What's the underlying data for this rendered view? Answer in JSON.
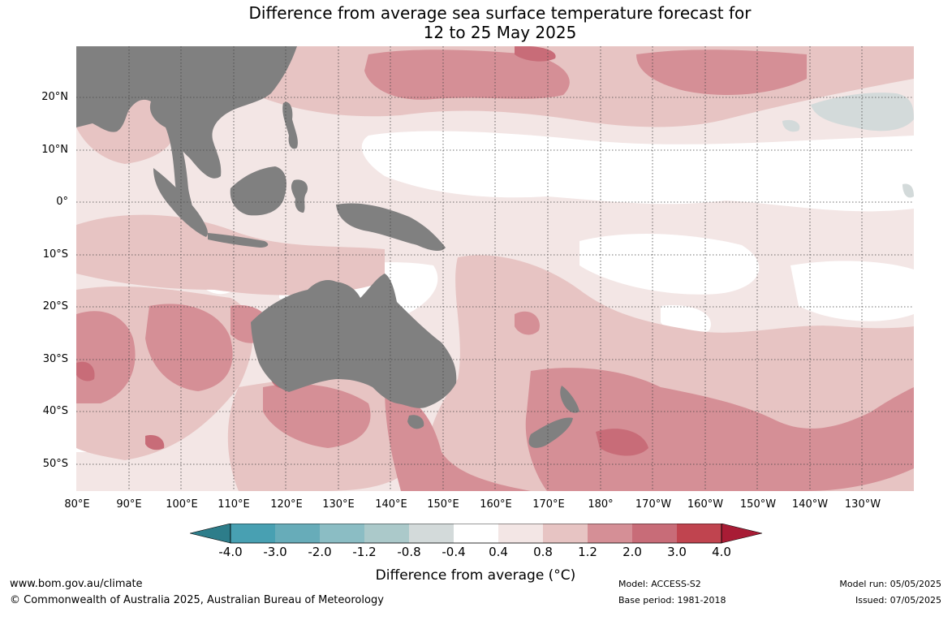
{
  "title": {
    "line1": "Difference from average sea surface temperature forecast for",
    "line2": "12 to 25 May 2025"
  },
  "map": {
    "lat_labels": [
      "20°N",
      "10°N",
      "0°",
      "10°S",
      "20°S",
      "30°S",
      "40°S",
      "50°S"
    ],
    "lon_labels": [
      "80°E",
      "90°E",
      "100°E",
      "110°E",
      "120°E",
      "130°E",
      "140°E",
      "150°E",
      "160°E",
      "170°E",
      "180°",
      "170°W",
      "160°W",
      "150°W",
      "140°W",
      "130°W"
    ],
    "colors": {
      "land": "#808080",
      "neutral": "#ffffff",
      "warm_0_4_0_8": "#f3e6e5",
      "warm_0_8_1_2": "#e7c4c3",
      "warm_1_2_2_0": "#d58f96",
      "warm_2_0_3_0": "#c86c78",
      "cool_minus_0_8_minus_0_4": "#d3dada",
      "grid": "#444444"
    }
  },
  "colorbar": {
    "title": "Difference from average (°C)",
    "ticks": [
      "-4.0",
      "-3.0",
      "-2.0",
      "-1.2",
      "-0.8",
      "-0.4",
      "0.4",
      "0.8",
      "1.2",
      "2.0",
      "3.0",
      "4.0"
    ],
    "colors": [
      "#2d7d8a",
      "#48a0b2",
      "#67acb9",
      "#8bbdc4",
      "#abc9ca",
      "#d3dada",
      "#ffffff",
      "#f3e6e5",
      "#e7c4c3",
      "#d58f96",
      "#c86c78",
      "#c0444f",
      "#a81c35"
    ]
  },
  "footer": {
    "url": "www.bom.gov.au/climate",
    "copyright": "© Commonwealth of Australia 2025, Australian Bureau of Meteorology",
    "model": "Model: ACCESS-S2",
    "base_period": "Base period: 1981-2018",
    "model_run": "Model run: 05/05/2025",
    "issued": "Issued: 07/05/2025"
  }
}
